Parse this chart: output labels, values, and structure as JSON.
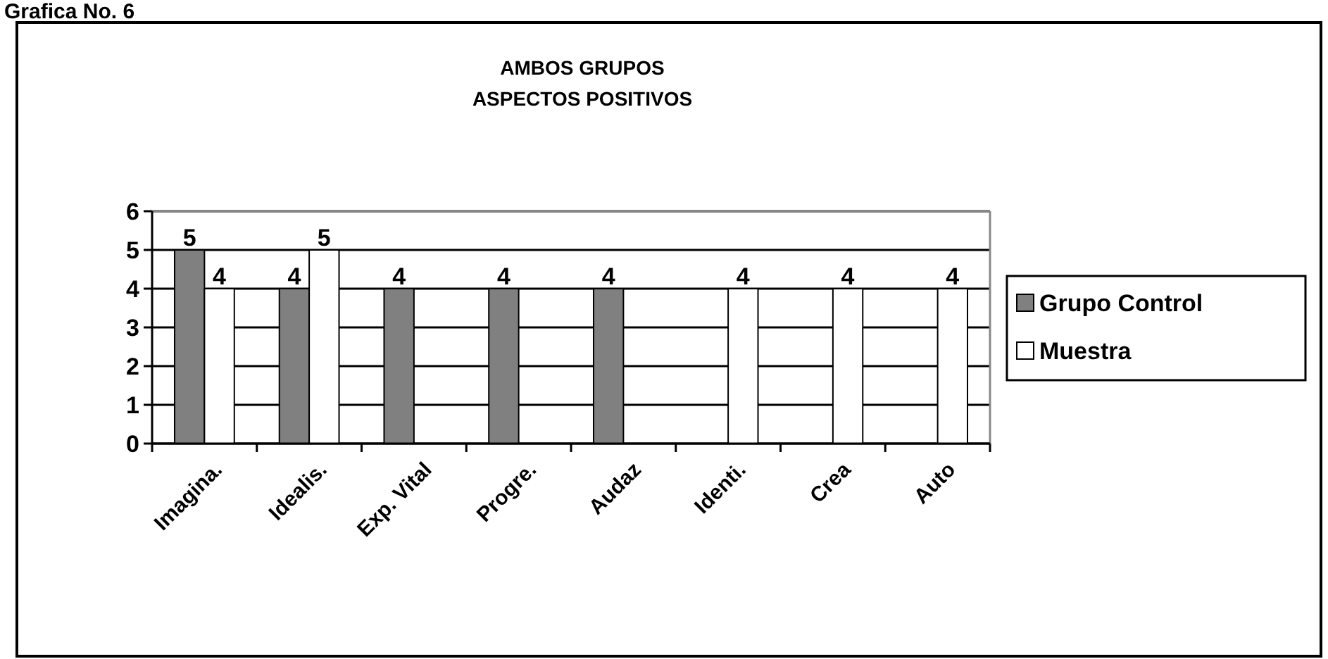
{
  "chart_data": {
    "type": "bar",
    "title": "AMBOS GRUPOS",
    "subtitle": "ASPECTOS POSITIVOS",
    "annotations": [
      "Grafica No. 6"
    ],
    "categories": [
      "Imagina.",
      "Idealis.",
      "Exp. Vital",
      "Progre.",
      "Audaz",
      "Identi.",
      "Crea",
      "Auto"
    ],
    "series": [
      {
        "name": "Grupo Control",
        "color": "#808080",
        "values": [
          5,
          4,
          4,
          4,
          4,
          null,
          null,
          null
        ]
      },
      {
        "name": "Muestra",
        "color": "#ffffff",
        "values": [
          4,
          5,
          null,
          null,
          null,
          4,
          4,
          4
        ]
      }
    ],
    "ylim": [
      0,
      6
    ],
    "yticks": [
      0,
      1,
      2,
      3,
      4,
      5,
      6
    ],
    "grid": "y",
    "legend": "right",
    "data_labels": true
  }
}
